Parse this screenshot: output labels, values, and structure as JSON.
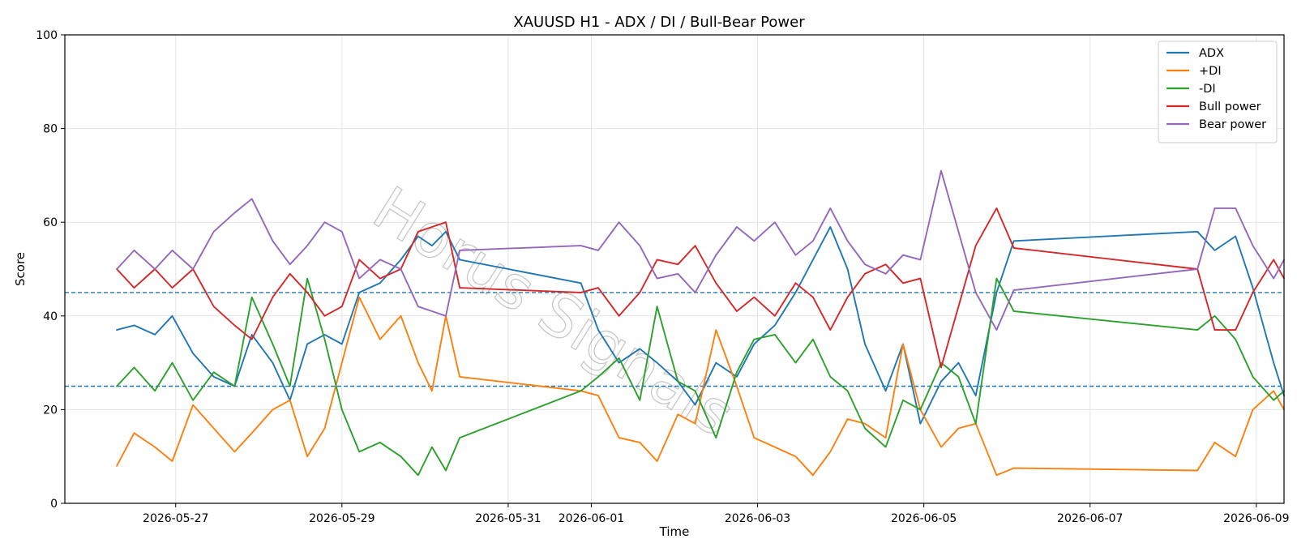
{
  "chart_data": {
    "type": "line",
    "title": "XAUUSD H1 - ADX / DI / Bull-Bear Power",
    "xlabel": "Time",
    "ylabel": "Score",
    "ylim": [
      0,
      100
    ],
    "xlim": [
      "2026-05-25T16:00",
      "2026-06-09T08:00"
    ],
    "yticks": [
      0,
      20,
      40,
      60,
      80,
      100
    ],
    "xticks": [
      "2026-05-27",
      "2026-05-29",
      "2026-05-31",
      "2026-06-01",
      "2026-06-03",
      "2026-06-05",
      "2026-06-07",
      "2026-06-09"
    ],
    "grid": true,
    "legend_position": "top-right",
    "reference_lines": [
      {
        "y": 45,
        "color": "#1f77b4",
        "style": "dashed"
      },
      {
        "y": 25,
        "color": "#1f77b4",
        "style": "dashed"
      }
    ],
    "watermark": "Horus Signals",
    "series": [
      {
        "name": "ADX",
        "color": "#1f77b4",
        "points": [
          [
            "2026-05-26T07:00",
            37
          ],
          [
            "2026-05-26T12:00",
            38
          ],
          [
            "2026-05-26T18:00",
            36
          ],
          [
            "2026-05-26T23:00",
            40
          ],
          [
            "2026-05-27T05:00",
            32
          ],
          [
            "2026-05-27T11:00",
            27
          ],
          [
            "2026-05-27T17:00",
            25
          ],
          [
            "2026-05-27T22:00",
            36
          ],
          [
            "2026-05-28T04:00",
            30
          ],
          [
            "2026-05-28T09:00",
            22
          ],
          [
            "2026-05-28T14:00",
            34
          ],
          [
            "2026-05-28T19:00",
            36
          ],
          [
            "2026-05-29T00:00",
            34
          ],
          [
            "2026-05-29T05:00",
            45
          ],
          [
            "2026-05-29T11:00",
            47
          ],
          [
            "2026-05-29T17:00",
            52
          ],
          [
            "2026-05-29T22:00",
            57
          ],
          [
            "2026-05-30T02:00",
            55
          ],
          [
            "2026-05-30T06:00",
            58
          ],
          [
            "2026-05-30T10:00",
            52
          ],
          [
            "2026-05-31T21:00",
            47
          ],
          [
            "2026-06-01T02:00",
            37
          ],
          [
            "2026-06-01T08:00",
            30
          ],
          [
            "2026-06-01T14:00",
            33
          ],
          [
            "2026-06-01T19:00",
            30
          ],
          [
            "2026-06-02T01:00",
            26
          ],
          [
            "2026-06-02T06:00",
            21
          ],
          [
            "2026-06-02T12:00",
            30
          ],
          [
            "2026-06-02T18:00",
            27
          ],
          [
            "2026-06-02T23:00",
            34
          ],
          [
            "2026-06-03T05:00",
            38
          ],
          [
            "2026-06-03T11:00",
            45
          ],
          [
            "2026-06-03T16:00",
            52
          ],
          [
            "2026-06-03T21:00",
            59
          ],
          [
            "2026-06-04T02:00",
            50
          ],
          [
            "2026-06-04T07:00",
            34
          ],
          [
            "2026-06-04T13:00",
            24
          ],
          [
            "2026-06-04T18:00",
            34
          ],
          [
            "2026-06-04T23:00",
            17
          ],
          [
            "2026-06-05T05:00",
            26
          ],
          [
            "2026-06-05T10:00",
            30
          ],
          [
            "2026-06-05T15:00",
            23
          ],
          [
            "2026-06-05T21:00",
            45
          ],
          [
            "2026-06-06T02:00",
            56
          ],
          [
            "2026-06-08T07:00",
            58
          ],
          [
            "2026-06-08T12:00",
            54
          ],
          [
            "2026-06-08T18:00",
            57
          ],
          [
            "2026-06-08T23:00",
            46
          ],
          [
            "2026-06-09T05:00",
            30
          ],
          [
            "2026-06-09T08:00",
            23
          ]
        ]
      },
      {
        "name": "+DI",
        "color": "#ff7f0e",
        "points": [
          [
            "2026-05-26T07:00",
            8
          ],
          [
            "2026-05-26T12:00",
            15
          ],
          [
            "2026-05-26T18:00",
            12
          ],
          [
            "2026-05-26T23:00",
            9
          ],
          [
            "2026-05-27T05:00",
            21
          ],
          [
            "2026-05-27T11:00",
            16
          ],
          [
            "2026-05-27T17:00",
            11
          ],
          [
            "2026-05-27T22:00",
            15
          ],
          [
            "2026-05-28T04:00",
            20
          ],
          [
            "2026-05-28T09:00",
            22
          ],
          [
            "2026-05-28T14:00",
            10
          ],
          [
            "2026-05-28T19:00",
            16
          ],
          [
            "2026-05-29T00:00",
            30
          ],
          [
            "2026-05-29T05:00",
            44
          ],
          [
            "2026-05-29T11:00",
            35
          ],
          [
            "2026-05-29T17:00",
            40
          ],
          [
            "2026-05-29T22:00",
            30
          ],
          [
            "2026-05-30T02:00",
            24
          ],
          [
            "2026-05-30T06:00",
            40
          ],
          [
            "2026-05-30T10:00",
            27
          ],
          [
            "2026-05-31T21:00",
            24
          ],
          [
            "2026-06-01T02:00",
            23
          ],
          [
            "2026-06-01T08:00",
            14
          ],
          [
            "2026-06-01T14:00",
            13
          ],
          [
            "2026-06-01T19:00",
            9
          ],
          [
            "2026-06-02T01:00",
            19
          ],
          [
            "2026-06-02T06:00",
            17
          ],
          [
            "2026-06-02T12:00",
            37
          ],
          [
            "2026-06-02T18:00",
            25
          ],
          [
            "2026-06-02T23:00",
            14
          ],
          [
            "2026-06-03T05:00",
            12
          ],
          [
            "2026-06-03T11:00",
            10
          ],
          [
            "2026-06-03T16:00",
            6
          ],
          [
            "2026-06-03T21:00",
            11
          ],
          [
            "2026-06-04T02:00",
            18
          ],
          [
            "2026-06-04T07:00",
            17
          ],
          [
            "2026-06-04T13:00",
            14
          ],
          [
            "2026-06-04T18:00",
            34
          ],
          [
            "2026-06-04T23:00",
            20
          ],
          [
            "2026-06-05T05:00",
            12
          ],
          [
            "2026-06-05T10:00",
            16
          ],
          [
            "2026-06-05T15:00",
            17
          ],
          [
            "2026-06-05T21:00",
            6
          ],
          [
            "2026-06-06T02:00",
            7.5
          ],
          [
            "2026-06-08T07:00",
            7
          ],
          [
            "2026-06-08T12:00",
            13
          ],
          [
            "2026-06-08T18:00",
            10
          ],
          [
            "2026-06-08T23:00",
            20
          ],
          [
            "2026-06-09T05:00",
            24
          ],
          [
            "2026-06-09T08:00",
            20
          ]
        ]
      },
      {
        "name": "-DI",
        "color": "#2ca02c",
        "points": [
          [
            "2026-05-26T07:00",
            25
          ],
          [
            "2026-05-26T12:00",
            29
          ],
          [
            "2026-05-26T18:00",
            24
          ],
          [
            "2026-05-26T23:00",
            30
          ],
          [
            "2026-05-27T05:00",
            22
          ],
          [
            "2026-05-27T11:00",
            28
          ],
          [
            "2026-05-27T17:00",
            25
          ],
          [
            "2026-05-27T22:00",
            44
          ],
          [
            "2026-05-28T04:00",
            34
          ],
          [
            "2026-05-28T09:00",
            25
          ],
          [
            "2026-05-28T14:00",
            48
          ],
          [
            "2026-05-28T19:00",
            35
          ],
          [
            "2026-05-29T00:00",
            20
          ],
          [
            "2026-05-29T05:00",
            11
          ],
          [
            "2026-05-29T11:00",
            13
          ],
          [
            "2026-05-29T17:00",
            10
          ],
          [
            "2026-05-29T22:00",
            6
          ],
          [
            "2026-05-30T02:00",
            12
          ],
          [
            "2026-05-30T06:00",
            7
          ],
          [
            "2026-05-30T10:00",
            14
          ],
          [
            "2026-05-31T21:00",
            24
          ],
          [
            "2026-06-01T02:00",
            27
          ],
          [
            "2026-06-01T08:00",
            31
          ],
          [
            "2026-06-01T14:00",
            22
          ],
          [
            "2026-06-01T19:00",
            42
          ],
          [
            "2026-06-02T01:00",
            26
          ],
          [
            "2026-06-02T06:00",
            24
          ],
          [
            "2026-06-02T12:00",
            14
          ],
          [
            "2026-06-02T18:00",
            28
          ],
          [
            "2026-06-02T23:00",
            35
          ],
          [
            "2026-06-03T05:00",
            36
          ],
          [
            "2026-06-03T11:00",
            30
          ],
          [
            "2026-06-03T16:00",
            35
          ],
          [
            "2026-06-03T21:00",
            27
          ],
          [
            "2026-06-04T02:00",
            24
          ],
          [
            "2026-06-04T07:00",
            16
          ],
          [
            "2026-06-04T13:00",
            12
          ],
          [
            "2026-06-04T18:00",
            22
          ],
          [
            "2026-06-04T23:00",
            20
          ],
          [
            "2026-06-05T05:00",
            30
          ],
          [
            "2026-06-05T10:00",
            27
          ],
          [
            "2026-06-05T15:00",
            17
          ],
          [
            "2026-06-05T21:00",
            48
          ],
          [
            "2026-06-06T02:00",
            41
          ],
          [
            "2026-06-08T07:00",
            37
          ],
          [
            "2026-06-08T12:00",
            40
          ],
          [
            "2026-06-08T18:00",
            35
          ],
          [
            "2026-06-08T23:00",
            27
          ],
          [
            "2026-06-09T05:00",
            22
          ],
          [
            "2026-06-09T08:00",
            24
          ]
        ]
      },
      {
        "name": "Bull power",
        "color": "#d62728",
        "points": [
          [
            "2026-05-26T07:00",
            50
          ],
          [
            "2026-05-26T12:00",
            46
          ],
          [
            "2026-05-26T18:00",
            50
          ],
          [
            "2026-05-26T23:00",
            46
          ],
          [
            "2026-05-27T05:00",
            50
          ],
          [
            "2026-05-27T11:00",
            42
          ],
          [
            "2026-05-27T17:00",
            38
          ],
          [
            "2026-05-27T22:00",
            35
          ],
          [
            "2026-05-28T04:00",
            44
          ],
          [
            "2026-05-28T09:00",
            49
          ],
          [
            "2026-05-28T14:00",
            45
          ],
          [
            "2026-05-28T19:00",
            40
          ],
          [
            "2026-05-29T00:00",
            42
          ],
          [
            "2026-05-29T05:00",
            52
          ],
          [
            "2026-05-29T11:00",
            48
          ],
          [
            "2026-05-29T17:00",
            50
          ],
          [
            "2026-05-29T22:00",
            58
          ],
          [
            "2026-05-30T02:00",
            59
          ],
          [
            "2026-05-30T06:00",
            60
          ],
          [
            "2026-05-30T10:00",
            46
          ],
          [
            "2026-05-31T21:00",
            45
          ],
          [
            "2026-06-01T02:00",
            46
          ],
          [
            "2026-06-01T08:00",
            40
          ],
          [
            "2026-06-01T14:00",
            45
          ],
          [
            "2026-06-01T19:00",
            52
          ],
          [
            "2026-06-02T01:00",
            51
          ],
          [
            "2026-06-02T06:00",
            55
          ],
          [
            "2026-06-02T12:00",
            47
          ],
          [
            "2026-06-02T18:00",
            41
          ],
          [
            "2026-06-02T23:00",
            44
          ],
          [
            "2026-06-03T05:00",
            40
          ],
          [
            "2026-06-03T11:00",
            47
          ],
          [
            "2026-06-03T16:00",
            44
          ],
          [
            "2026-06-03T21:00",
            37
          ],
          [
            "2026-06-04T02:00",
            44
          ],
          [
            "2026-06-04T07:00",
            49
          ],
          [
            "2026-06-04T13:00",
            51
          ],
          [
            "2026-06-04T18:00",
            47
          ],
          [
            "2026-06-04T23:00",
            48
          ],
          [
            "2026-06-05T05:00",
            29
          ],
          [
            "2026-06-05T10:00",
            42
          ],
          [
            "2026-06-05T15:00",
            55
          ],
          [
            "2026-06-05T21:00",
            63
          ],
          [
            "2026-06-06T02:00",
            54.5
          ],
          [
            "2026-06-08T07:00",
            50
          ],
          [
            "2026-06-08T12:00",
            37
          ],
          [
            "2026-06-08T18:00",
            37
          ],
          [
            "2026-06-08T23:00",
            45
          ],
          [
            "2026-06-09T05:00",
            52
          ],
          [
            "2026-06-09T08:00",
            48
          ]
        ]
      },
      {
        "name": "Bear power",
        "color": "#9467bd",
        "points": [
          [
            "2026-05-26T07:00",
            50
          ],
          [
            "2026-05-26T12:00",
            54
          ],
          [
            "2026-05-26T18:00",
            50
          ],
          [
            "2026-05-26T23:00",
            54
          ],
          [
            "2026-05-27T05:00",
            50
          ],
          [
            "2026-05-27T11:00",
            58
          ],
          [
            "2026-05-27T17:00",
            62
          ],
          [
            "2026-05-27T22:00",
            65
          ],
          [
            "2026-05-28T04:00",
            56
          ],
          [
            "2026-05-28T09:00",
            51
          ],
          [
            "2026-05-28T14:00",
            55
          ],
          [
            "2026-05-28T19:00",
            60
          ],
          [
            "2026-05-29T00:00",
            58
          ],
          [
            "2026-05-29T05:00",
            48
          ],
          [
            "2026-05-29T11:00",
            52
          ],
          [
            "2026-05-29T17:00",
            50
          ],
          [
            "2026-05-29T22:00",
            42
          ],
          [
            "2026-05-30T02:00",
            41
          ],
          [
            "2026-05-30T06:00",
            40
          ],
          [
            "2026-05-30T10:00",
            54
          ],
          [
            "2026-05-31T21:00",
            55
          ],
          [
            "2026-06-01T02:00",
            54
          ],
          [
            "2026-06-01T08:00",
            60
          ],
          [
            "2026-06-01T14:00",
            55
          ],
          [
            "2026-06-01T19:00",
            48
          ],
          [
            "2026-06-02T01:00",
            49
          ],
          [
            "2026-06-02T06:00",
            45
          ],
          [
            "2026-06-02T12:00",
            53
          ],
          [
            "2026-06-02T18:00",
            59
          ],
          [
            "2026-06-02T23:00",
            56
          ],
          [
            "2026-06-03T05:00",
            60
          ],
          [
            "2026-06-03T11:00",
            53
          ],
          [
            "2026-06-03T16:00",
            56
          ],
          [
            "2026-06-03T21:00",
            63
          ],
          [
            "2026-06-04T02:00",
            56
          ],
          [
            "2026-06-04T07:00",
            51
          ],
          [
            "2026-06-04T13:00",
            49
          ],
          [
            "2026-06-04T18:00",
            53
          ],
          [
            "2026-06-04T23:00",
            52
          ],
          [
            "2026-06-05T05:00",
            71
          ],
          [
            "2026-06-05T10:00",
            58
          ],
          [
            "2026-06-05T15:00",
            45
          ],
          [
            "2026-06-05T21:00",
            37
          ],
          [
            "2026-06-06T02:00",
            45.5
          ],
          [
            "2026-06-08T07:00",
            50
          ],
          [
            "2026-06-08T12:00",
            63
          ],
          [
            "2026-06-08T18:00",
            63
          ],
          [
            "2026-06-08T23:00",
            55
          ],
          [
            "2026-06-09T05:00",
            48
          ],
          [
            "2026-06-09T08:00",
            52
          ]
        ]
      }
    ]
  }
}
